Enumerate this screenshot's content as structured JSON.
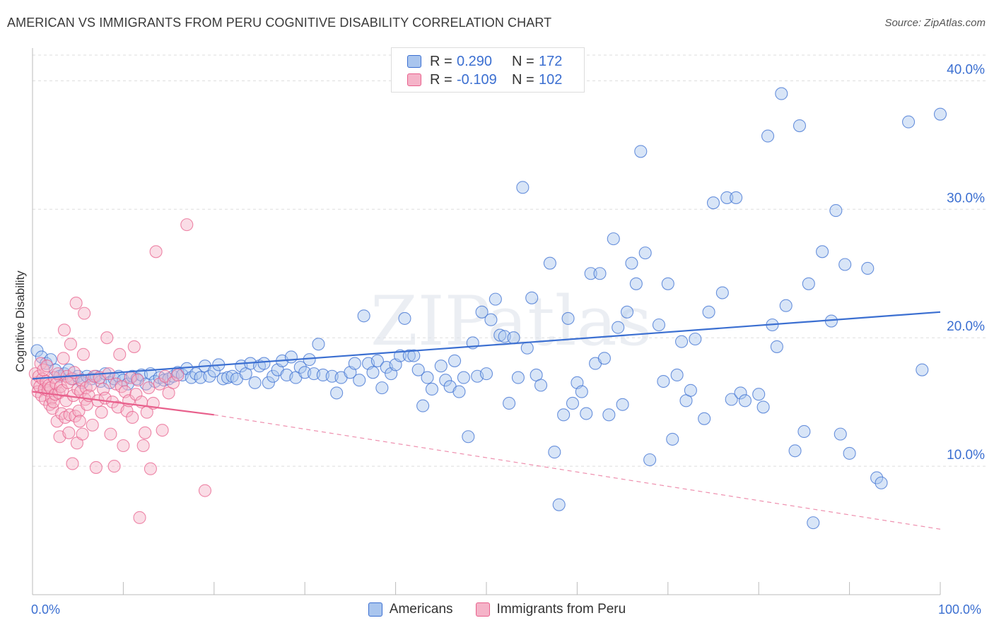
{
  "title": "AMERICAN VS IMMIGRANTS FROM PERU COGNITIVE DISABILITY CORRELATION CHART",
  "source": "Source: ZipAtlas.com",
  "watermark": "ZIPatlas",
  "colors": {
    "blue": "#3b6fd1",
    "blue_fill": "#a9c5ee",
    "pink": "#e8608c",
    "pink_fill": "#f5b3c8",
    "grid": "#dddddd"
  },
  "legend": {
    "rows": [
      {
        "label": "R =",
        "r": "0.290",
        "n_label": "N =",
        "n": "172"
      },
      {
        "label": "R =",
        "r": "-0.109",
        "n_label": "N =",
        "n": "102"
      }
    ]
  },
  "chart_data": {
    "type": "scatter",
    "xlabel": "",
    "ylabel": "Cognitive Disability",
    "xlim": [
      0,
      100
    ],
    "ylim": [
      0,
      42
    ],
    "x_tick_labels": {
      "min": "0.0%",
      "max": "100.0%"
    },
    "y_ticks": [
      {
        "value": 10,
        "label": "10.0%"
      },
      {
        "value": 20,
        "label": "20.0%"
      },
      {
        "value": 30,
        "label": "30.0%"
      },
      {
        "value": 40,
        "label": "40.0%"
      }
    ],
    "grid": true,
    "series": [
      {
        "name": "Americans",
        "trend": {
          "x0": 0,
          "y0": 16.8,
          "x1": 100,
          "y1": 22.0,
          "style": "solid"
        },
        "points": [
          [
            0.5,
            19.0
          ],
          [
            1.0,
            18.5
          ],
          [
            1.5,
            18.0
          ],
          [
            2.0,
            18.3
          ],
          [
            2.5,
            17.5
          ],
          [
            3.0,
            17.0
          ],
          [
            3.5,
            17.2
          ],
          [
            4.0,
            17.5
          ],
          [
            4.5,
            16.8
          ],
          [
            5.0,
            17.0
          ],
          [
            5.5,
            16.5
          ],
          [
            6.0,
            17.0
          ],
          [
            6.5,
            16.8
          ],
          [
            7.0,
            17.0
          ],
          [
            7.5,
            16.6
          ],
          [
            8.0,
            17.2
          ],
          [
            8.5,
            16.5
          ],
          [
            9.0,
            16.8
          ],
          [
            9.5,
            17.0
          ],
          [
            10.0,
            16.7
          ],
          [
            10.5,
            16.4
          ],
          [
            11.0,
            17.0
          ],
          [
            11.5,
            16.8
          ],
          [
            12.0,
            17.1
          ],
          [
            12.5,
            16.4
          ],
          [
            13.0,
            17.2
          ],
          [
            13.5,
            16.6
          ],
          [
            14.0,
            16.9
          ],
          [
            14.5,
            16.7
          ],
          [
            15.0,
            16.8
          ],
          [
            15.5,
            17.0
          ],
          [
            16.0,
            17.3
          ],
          [
            16.5,
            17.1
          ],
          [
            17.0,
            17.6
          ],
          [
            17.5,
            16.9
          ],
          [
            18.0,
            17.2
          ],
          [
            18.5,
            16.9
          ],
          [
            19.0,
            17.8
          ],
          [
            19.5,
            17.0
          ],
          [
            20.0,
            17.4
          ],
          [
            20.5,
            17.9
          ],
          [
            21.0,
            16.8
          ],
          [
            21.5,
            16.9
          ],
          [
            22.0,
            17.0
          ],
          [
            22.5,
            16.8
          ],
          [
            23.0,
            17.8
          ],
          [
            23.5,
            17.2
          ],
          [
            24.0,
            18.0
          ],
          [
            24.5,
            16.5
          ],
          [
            25.0,
            17.8
          ],
          [
            25.5,
            18.0
          ],
          [
            26.0,
            16.5
          ],
          [
            26.5,
            17.0
          ],
          [
            27.0,
            17.5
          ],
          [
            27.5,
            18.2
          ],
          [
            28.0,
            17.1
          ],
          [
            28.5,
            18.5
          ],
          [
            29.0,
            16.9
          ],
          [
            29.5,
            17.7
          ],
          [
            30.0,
            17.3
          ],
          [
            30.5,
            18.3
          ],
          [
            31.0,
            17.2
          ],
          [
            31.5,
            19.5
          ],
          [
            32.0,
            17.1
          ],
          [
            33.0,
            17.0
          ],
          [
            33.5,
            15.7
          ],
          [
            34.0,
            16.9
          ],
          [
            35.0,
            17.3
          ],
          [
            35.5,
            18.0
          ],
          [
            36.0,
            16.7
          ],
          [
            36.5,
            21.7
          ],
          [
            37.0,
            18.0
          ],
          [
            37.5,
            17.3
          ],
          [
            38.0,
            18.2
          ],
          [
            38.5,
            16.1
          ],
          [
            39.0,
            17.7
          ],
          [
            39.5,
            17.2
          ],
          [
            40.0,
            17.9
          ],
          [
            40.5,
            18.6
          ],
          [
            41.0,
            21.5
          ],
          [
            41.5,
            18.6
          ],
          [
            42.0,
            18.6
          ],
          [
            42.5,
            17.5
          ],
          [
            43.0,
            14.7
          ],
          [
            43.5,
            16.9
          ],
          [
            44.0,
            16.0
          ],
          [
            45.0,
            17.8
          ],
          [
            45.5,
            16.7
          ],
          [
            46.0,
            16.2
          ],
          [
            46.5,
            18.2
          ],
          [
            47.0,
            15.8
          ],
          [
            47.5,
            16.9
          ],
          [
            48.0,
            12.3
          ],
          [
            48.5,
            19.6
          ],
          [
            49.0,
            17.0
          ],
          [
            49.5,
            22.0
          ],
          [
            50.0,
            17.2
          ],
          [
            50.5,
            21.4
          ],
          [
            51.0,
            23.0
          ],
          [
            51.5,
            20.2
          ],
          [
            52.0,
            20.1
          ],
          [
            52.5,
            14.9
          ],
          [
            53.0,
            20.0
          ],
          [
            53.5,
            16.9
          ],
          [
            54.0,
            31.7
          ],
          [
            54.5,
            19.2
          ],
          [
            55.0,
            23.1
          ],
          [
            55.5,
            17.1
          ],
          [
            56.0,
            16.3
          ],
          [
            57.0,
            25.8
          ],
          [
            57.5,
            11.1
          ],
          [
            58.0,
            7.0
          ],
          [
            58.5,
            14.0
          ],
          [
            59.0,
            21.5
          ],
          [
            59.5,
            14.9
          ],
          [
            60.0,
            16.5
          ],
          [
            60.5,
            15.8
          ],
          [
            61.0,
            14.1
          ],
          [
            61.5,
            25.0
          ],
          [
            62.0,
            18.0
          ],
          [
            62.5,
            25.0
          ],
          [
            63.0,
            18.4
          ],
          [
            63.5,
            14.0
          ],
          [
            64.0,
            27.7
          ],
          [
            64.5,
            20.8
          ],
          [
            65.0,
            14.8
          ],
          [
            65.5,
            22.0
          ],
          [
            66.0,
            25.8
          ],
          [
            66.5,
            24.2
          ],
          [
            67.0,
            34.5
          ],
          [
            67.5,
            26.6
          ],
          [
            68.0,
            10.5
          ],
          [
            69.0,
            21.0
          ],
          [
            69.5,
            16.6
          ],
          [
            70.0,
            24.2
          ],
          [
            70.5,
            12.1
          ],
          [
            71.0,
            17.1
          ],
          [
            71.5,
            19.7
          ],
          [
            72.0,
            15.1
          ],
          [
            72.5,
            15.9
          ],
          [
            73.0,
            19.9
          ],
          [
            74.0,
            13.7
          ],
          [
            74.5,
            22.0
          ],
          [
            75.0,
            30.5
          ],
          [
            76.0,
            23.5
          ],
          [
            76.5,
            30.9
          ],
          [
            77.0,
            15.2
          ],
          [
            77.5,
            30.9
          ],
          [
            78.0,
            15.7
          ],
          [
            78.5,
            15.1
          ],
          [
            80.0,
            15.6
          ],
          [
            80.5,
            14.6
          ],
          [
            81.0,
            35.7
          ],
          [
            81.5,
            21.0
          ],
          [
            82.0,
            19.3
          ],
          [
            82.5,
            39.0
          ],
          [
            83.0,
            22.5
          ],
          [
            84.0,
            11.2
          ],
          [
            84.5,
            36.5
          ],
          [
            85.0,
            12.7
          ],
          [
            85.5,
            24.2
          ],
          [
            86.0,
            5.6
          ],
          [
            87.0,
            26.7
          ],
          [
            88.0,
            21.3
          ],
          [
            88.5,
            29.9
          ],
          [
            89.0,
            12.5
          ],
          [
            89.5,
            25.7
          ],
          [
            90.0,
            11.0
          ],
          [
            92.0,
            25.4
          ],
          [
            93.0,
            9.1
          ],
          [
            93.5,
            8.7
          ],
          [
            96.5,
            36.8
          ],
          [
            98.0,
            17.5
          ],
          [
            100.0,
            37.4
          ]
        ]
      },
      {
        "name": "Immigrants from Peru",
        "trend": {
          "x0": 0,
          "y0": 15.8,
          "x1": 20,
          "y1": 14.0,
          "style": "solid",
          "extend_to": {
            "x": 100,
            "y": 5.1
          }
        },
        "points": [
          [
            0.3,
            17.2
          ],
          [
            0.5,
            16.5
          ],
          [
            0.6,
            15.8
          ],
          [
            0.7,
            17.0
          ],
          [
            0.8,
            16.2
          ],
          [
            0.9,
            18.0
          ],
          [
            1.0,
            15.5
          ],
          [
            1.1,
            16.8
          ],
          [
            1.2,
            17.5
          ],
          [
            1.3,
            16.0
          ],
          [
            1.4,
            15.2
          ],
          [
            1.5,
            16.6
          ],
          [
            1.6,
            17.8
          ],
          [
            1.7,
            15.9
          ],
          [
            1.8,
            16.3
          ],
          [
            1.9,
            14.8
          ],
          [
            2.0,
            16.1
          ],
          [
            2.1,
            15.3
          ],
          [
            2.2,
            14.5
          ],
          [
            2.3,
            15.0
          ],
          [
            2.4,
            16.9
          ],
          [
            2.5,
            15.6
          ],
          [
            2.6,
            16.4
          ],
          [
            2.7,
            13.5
          ],
          [
            2.8,
            17.2
          ],
          [
            2.9,
            15.7
          ],
          [
            3.0,
            12.3
          ],
          [
            3.1,
            16.2
          ],
          [
            3.2,
            14.1
          ],
          [
            3.3,
            15.9
          ],
          [
            3.4,
            18.4
          ],
          [
            3.5,
            20.6
          ],
          [
            3.6,
            13.8
          ],
          [
            3.7,
            15.1
          ],
          [
            3.8,
            17.0
          ],
          [
            3.9,
            16.5
          ],
          [
            4.0,
            12.6
          ],
          [
            4.1,
            14.0
          ],
          [
            4.2,
            19.5
          ],
          [
            4.3,
            16.8
          ],
          [
            4.4,
            10.2
          ],
          [
            4.5,
            15.5
          ],
          [
            4.6,
            17.3
          ],
          [
            4.7,
            13.9
          ],
          [
            4.8,
            22.7
          ],
          [
            4.9,
            11.8
          ],
          [
            5.0,
            16.0
          ],
          [
            5.1,
            14.3
          ],
          [
            5.2,
            13.5
          ],
          [
            5.3,
            15.8
          ],
          [
            5.4,
            16.7
          ],
          [
            5.5,
            12.5
          ],
          [
            5.6,
            18.7
          ],
          [
            5.7,
            21.9
          ],
          [
            5.8,
            15.2
          ],
          [
            5.9,
            16.1
          ],
          [
            6.0,
            14.8
          ],
          [
            6.2,
            15.5
          ],
          [
            6.4,
            16.3
          ],
          [
            6.6,
            13.2
          ],
          [
            6.8,
            17.0
          ],
          [
            7.0,
            9.9
          ],
          [
            7.2,
            15.1
          ],
          [
            7.4,
            16.9
          ],
          [
            7.6,
            14.2
          ],
          [
            7.8,
            16.0
          ],
          [
            8.0,
            15.3
          ],
          [
            8.2,
            20.0
          ],
          [
            8.4,
            17.2
          ],
          [
            8.6,
            12.5
          ],
          [
            8.8,
            15.0
          ],
          [
            9.0,
            10.0
          ],
          [
            9.2,
            16.4
          ],
          [
            9.4,
            14.6
          ],
          [
            9.6,
            18.7
          ],
          [
            9.8,
            16.2
          ],
          [
            10.0,
            11.6
          ],
          [
            10.2,
            15.8
          ],
          [
            10.4,
            14.3
          ],
          [
            10.6,
            15.1
          ],
          [
            10.8,
            16.9
          ],
          [
            11.0,
            13.8
          ],
          [
            11.2,
            19.3
          ],
          [
            11.4,
            15.6
          ],
          [
            11.6,
            16.7
          ],
          [
            11.8,
            6.0
          ],
          [
            12.0,
            15.0
          ],
          [
            12.2,
            11.6
          ],
          [
            12.4,
            12.6
          ],
          [
            12.6,
            14.2
          ],
          [
            12.8,
            16.1
          ],
          [
            13.0,
            9.8
          ],
          [
            13.3,
            14.9
          ],
          [
            13.6,
            26.7
          ],
          [
            14.0,
            16.4
          ],
          [
            14.3,
            12.8
          ],
          [
            14.6,
            17.0
          ],
          [
            15.0,
            15.7
          ],
          [
            15.5,
            16.5
          ],
          [
            16.0,
            17.1
          ],
          [
            17.0,
            28.8
          ],
          [
            19.0,
            8.1
          ]
        ]
      }
    ]
  },
  "bottom_legend": [
    {
      "label": "Americans"
    },
    {
      "label": "Immigrants from Peru"
    }
  ]
}
